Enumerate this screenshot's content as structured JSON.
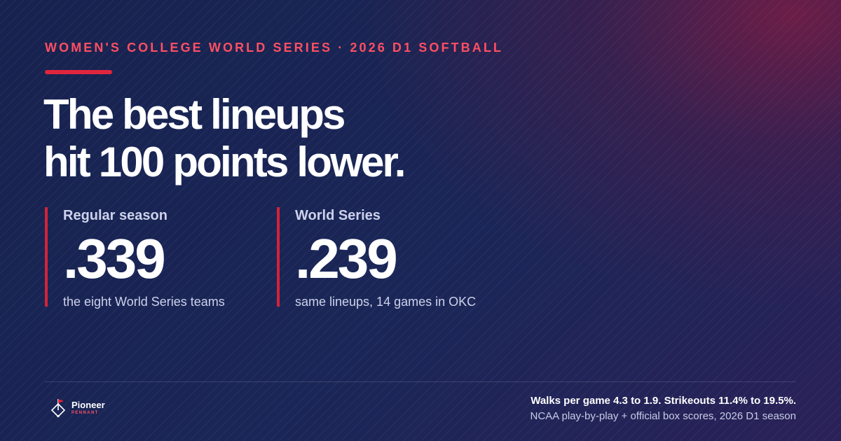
{
  "eyebrow": "WOMEN'S COLLEGE WORLD SERIES · 2026 D1 SOFTBALL",
  "headline": {
    "line1": "The best lineups",
    "line2": "hit 100 points lower."
  },
  "stats": [
    {
      "label": "Regular season",
      "value": ".339",
      "note": "the eight World Series teams"
    },
    {
      "label": "World Series",
      "value": ".239",
      "note": "same lineups, 14 games in OKC"
    }
  ],
  "brand": {
    "name": "Pioneer",
    "sub": "PENNANT",
    "icon": "diamond-pennant-icon"
  },
  "footer": {
    "summary": "Walks per game 4.3 to 1.9. Strikeouts 11.4% to 19.5%.",
    "source": "NCAA play-by-play + official box scores, 2026 D1 season"
  },
  "colors": {
    "accent": "#e0263d",
    "eyebrow": "#ff4f63",
    "background": "#1a2657"
  }
}
